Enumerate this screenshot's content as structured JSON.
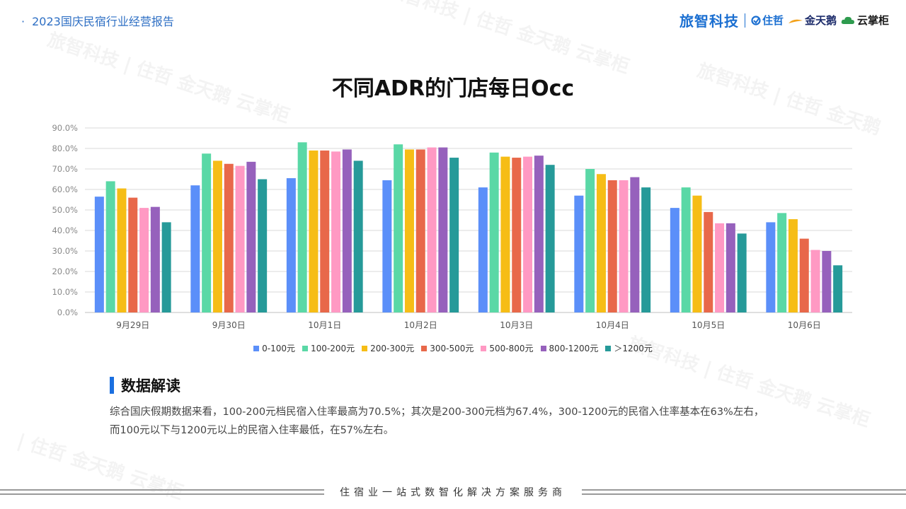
{
  "header": {
    "title": "2023国庆民宿行业经营报告",
    "logos": {
      "main": "旅智科技",
      "zhuzhe": "住哲",
      "jintiane": "金天鹅",
      "yunzhanggui": "云掌柜"
    }
  },
  "colors": {
    "accent": "#1a6fe0",
    "series": [
      "#5b8ff9",
      "#5ad8a6",
      "#f6bd16",
      "#e8684a",
      "#ff99c3",
      "#9661bc",
      "#269a99"
    ]
  },
  "chart_data": {
    "type": "bar",
    "title": "不同ADR的门店每日Occ",
    "categories": [
      "9月29日",
      "9月30日",
      "10月1日",
      "10月2日",
      "10月3日",
      "10月4日",
      "10月5日",
      "10月6日"
    ],
    "yticks": [
      "0.0%",
      "10.0%",
      "20.0%",
      "30.0%",
      "40.0%",
      "50.0%",
      "60.0%",
      "70.0%",
      "80.0%",
      "90.0%"
    ],
    "ylim": [
      0,
      90
    ],
    "grid": true,
    "legend_position": "bottom",
    "series": [
      {
        "name": "0-100元",
        "values": [
          56.5,
          62.0,
          65.5,
          64.5,
          61.0,
          57.0,
          51.0,
          44.0
        ]
      },
      {
        "name": "100-200元",
        "values": [
          64.0,
          77.5,
          83.0,
          82.0,
          78.0,
          70.0,
          61.0,
          48.5
        ]
      },
      {
        "name": "200-300元",
        "values": [
          60.5,
          74.0,
          79.0,
          79.5,
          76.0,
          67.5,
          57.0,
          45.5
        ]
      },
      {
        "name": "300-500元",
        "values": [
          56.0,
          72.5,
          79.0,
          79.5,
          75.5,
          64.5,
          49.0,
          36.0
        ]
      },
      {
        "name": "500-800元",
        "values": [
          51.0,
          71.5,
          78.5,
          80.5,
          76.0,
          64.5,
          43.5,
          30.5
        ]
      },
      {
        "name": "800-1200元",
        "values": [
          51.5,
          73.5,
          79.5,
          80.5,
          76.5,
          66.0,
          43.5,
          30.0
        ]
      },
      {
        "name": "＞1200元",
        "values": [
          44.0,
          65.0,
          74.0,
          75.5,
          72.0,
          61.0,
          38.5,
          23.0
        ]
      }
    ]
  },
  "analysis": {
    "heading": "数据解读",
    "line1": "综合国庆假期数据来看，100-200元档民宿入住率最高为70.5%；其次是200-300元档为67.4%，300-1200元的民宿入住率基本在63%左右，",
    "line2": "而100元以下与1200元以上的民宿入住率最低，在57%左右。"
  },
  "footer": {
    "slogan": "住宿业一站式数智化解决方案服务商"
  }
}
